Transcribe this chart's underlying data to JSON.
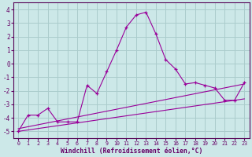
{
  "xlabel": "Windchill (Refroidissement éolien,°C)",
  "background_color": "#cce8e8",
  "grid_color": "#aacccc",
  "line_color": "#990099",
  "xlim": [
    -0.5,
    23.5
  ],
  "ylim": [
    -5.5,
    4.5
  ],
  "xticks": [
    0,
    1,
    2,
    3,
    4,
    5,
    6,
    7,
    8,
    9,
    10,
    11,
    12,
    13,
    14,
    15,
    16,
    17,
    18,
    19,
    20,
    21,
    22,
    23
  ],
  "yticks": [
    -5,
    -4,
    -3,
    -2,
    -1,
    0,
    1,
    2,
    3,
    4
  ],
  "series1_x": [
    0,
    1,
    2,
    3,
    4,
    5,
    6,
    7,
    8,
    9,
    10,
    11,
    12,
    13,
    14,
    15,
    16,
    17,
    18,
    19,
    20,
    21,
    22,
    23
  ],
  "series1_y": [
    -5.0,
    -3.8,
    -3.8,
    -3.3,
    -4.3,
    -4.3,
    -4.3,
    -1.6,
    -2.2,
    -0.6,
    1.0,
    2.7,
    3.6,
    3.8,
    2.2,
    0.3,
    -0.4,
    -1.5,
    -1.4,
    -1.6,
    -1.8,
    -2.7,
    -2.7,
    -1.4
  ],
  "series2_x": [
    0,
    23
  ],
  "series2_y": [
    -4.8,
    -1.5
  ],
  "series3_x": [
    0,
    23
  ],
  "series3_y": [
    -5.0,
    -2.6
  ]
}
